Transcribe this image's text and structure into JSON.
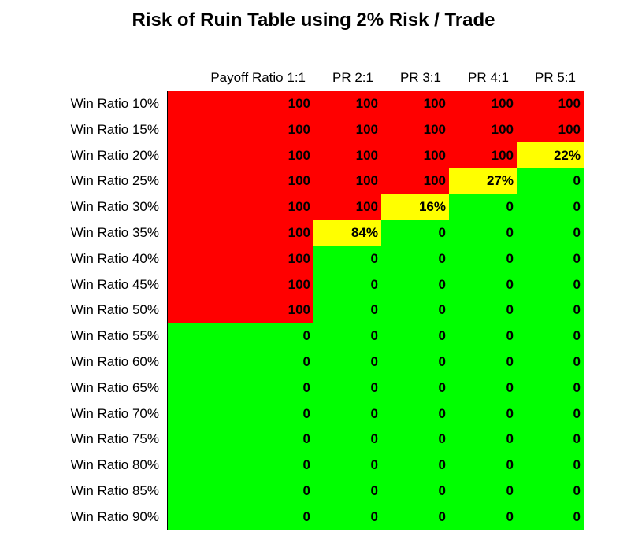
{
  "table": {
    "title": "Risk of Ruin Table using 2% Risk / Trade",
    "columns": [
      "Payoff Ratio 1:1",
      "PR 2:1",
      "PR 3:1",
      "PR 4:1",
      "PR 5:1"
    ],
    "rows": [
      {
        "label": "Win Ratio 10%",
        "cells": [
          "100",
          "100",
          "100",
          "100",
          "100"
        ]
      },
      {
        "label": "Win Ratio 15%",
        "cells": [
          "100",
          "100",
          "100",
          "100",
          "100"
        ]
      },
      {
        "label": "Win Ratio 20%",
        "cells": [
          "100",
          "100",
          "100",
          "100",
          "22%"
        ]
      },
      {
        "label": "Win Ratio 25%",
        "cells": [
          "100",
          "100",
          "100",
          "27%",
          "0"
        ]
      },
      {
        "label": "Win Ratio 30%",
        "cells": [
          "100",
          "100",
          "16%",
          "0",
          "0"
        ]
      },
      {
        "label": "Win Ratio 35%",
        "cells": [
          "100",
          "84%",
          "0",
          "0",
          "0"
        ]
      },
      {
        "label": "Win Ratio 40%",
        "cells": [
          "100",
          "0",
          "0",
          "0",
          "0"
        ]
      },
      {
        "label": "Win Ratio 45%",
        "cells": [
          "100",
          "0",
          "0",
          "0",
          "0"
        ]
      },
      {
        "label": "Win Ratio 50%",
        "cells": [
          "100",
          "0",
          "0",
          "0",
          "0"
        ]
      },
      {
        "label": "Win Ratio 55%",
        "cells": [
          "0",
          "0",
          "0",
          "0",
          "0"
        ]
      },
      {
        "label": "Win Ratio 60%",
        "cells": [
          "0",
          "0",
          "0",
          "0",
          "0"
        ]
      },
      {
        "label": "Win Ratio 65%",
        "cells": [
          "0",
          "0",
          "0",
          "0",
          "0"
        ]
      },
      {
        "label": "Win Ratio 70%",
        "cells": [
          "0",
          "0",
          "0",
          "0",
          "0"
        ]
      },
      {
        "label": "Win Ratio 75%",
        "cells": [
          "0",
          "0",
          "0",
          "0",
          "0"
        ]
      },
      {
        "label": "Win Ratio 80%",
        "cells": [
          "0",
          "0",
          "0",
          "0",
          "0"
        ]
      },
      {
        "label": "Win Ratio 85%",
        "cells": [
          "0",
          "0",
          "0",
          "0",
          "0"
        ]
      },
      {
        "label": "Win Ratio 90%",
        "cells": [
          "0",
          "0",
          "0",
          "0",
          "0"
        ]
      }
    ]
  }
}
